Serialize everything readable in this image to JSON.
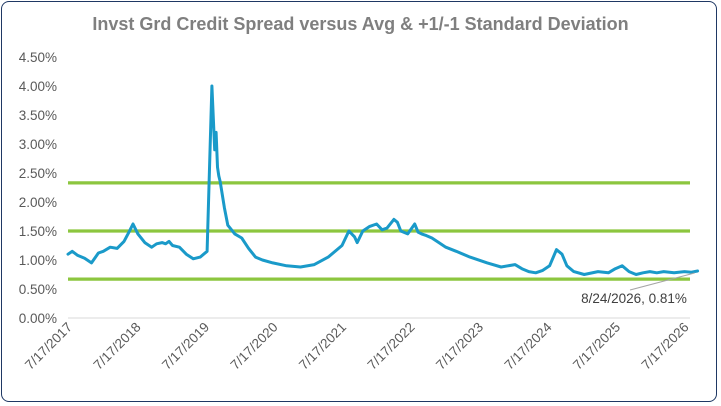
{
  "chart_data": {
    "type": "line",
    "title": "Invst Grd Credit Spread versus Avg & +1/-1 Standard Deviation",
    "xlabel": "",
    "ylabel": "",
    "ylim": [
      0,
      4.5
    ],
    "yticks": [
      "0.00%",
      "0.50%",
      "1.00%",
      "1.50%",
      "2.00%",
      "2.50%",
      "3.00%",
      "3.50%",
      "4.00%",
      "4.50%"
    ],
    "xticks": [
      "7/17/2017",
      "7/17/2018",
      "7/17/2019",
      "7/17/2020",
      "7/17/2021",
      "7/17/2022",
      "7/17/2023",
      "7/17/2024",
      "7/17/2025",
      "7/17/2026"
    ],
    "grid": false,
    "legend": "none",
    "colors": {
      "series": "#1a9ac9",
      "bands": "#8cc63f",
      "frame": "#1f3864"
    },
    "series": [
      {
        "x": [
          2017.54,
          2017.6,
          2017.68,
          2017.78,
          2017.88,
          2017.98,
          2018.05,
          2018.15,
          2018.25,
          2018.35,
          2018.42,
          2018.48,
          2018.55,
          2018.65,
          2018.75,
          2018.82,
          2018.9,
          2018.95,
          2019.0,
          2019.05,
          2019.15,
          2019.25,
          2019.35,
          2019.45,
          2019.55,
          2019.62,
          2019.66,
          2019.68,
          2019.7,
          2019.72,
          2019.74,
          2019.76,
          2019.8,
          2019.85,
          2019.95,
          2020.05,
          2020.15,
          2020.25,
          2020.35,
          2020.5,
          2020.7,
          2020.9,
          2021.1,
          2021.3,
          2021.5,
          2021.6,
          2021.68,
          2021.72,
          2021.8,
          2021.9,
          2022.0,
          2022.08,
          2022.15,
          2022.25,
          2022.3,
          2022.35,
          2022.45,
          2022.55,
          2022.6,
          2022.65,
          2022.72,
          2022.8,
          2022.9,
          2023.0,
          2023.15,
          2023.35,
          2023.6,
          2023.8,
          2024.0,
          2024.1,
          2024.2,
          2024.3,
          2024.4,
          2024.5,
          2024.6,
          2024.68,
          2024.75,
          2024.85,
          2025.0,
          2025.2,
          2025.35,
          2025.45,
          2025.55,
          2025.65,
          2025.75,
          2025.85,
          2025.95,
          2026.05,
          2026.15,
          2026.3,
          2026.45,
          2026.55,
          2026.64
        ],
        "values": [
          1.1,
          1.15,
          1.08,
          1.03,
          0.95,
          1.12,
          1.15,
          1.22,
          1.2,
          1.32,
          1.48,
          1.62,
          1.45,
          1.3,
          1.22,
          1.28,
          1.3,
          1.28,
          1.32,
          1.25,
          1.22,
          1.1,
          1.02,
          1.05,
          1.15,
          4.0,
          2.9,
          3.2,
          2.6,
          2.45,
          2.35,
          2.2,
          1.9,
          1.6,
          1.45,
          1.38,
          1.2,
          1.05,
          1.0,
          0.95,
          0.9,
          0.88,
          0.92,
          1.05,
          1.25,
          1.5,
          1.4,
          1.3,
          1.5,
          1.58,
          1.62,
          1.52,
          1.55,
          1.7,
          1.65,
          1.5,
          1.45,
          1.62,
          1.48,
          1.45,
          1.42,
          1.38,
          1.3,
          1.22,
          1.15,
          1.05,
          0.95,
          0.88,
          0.92,
          0.85,
          0.8,
          0.78,
          0.82,
          0.9,
          1.18,
          1.1,
          0.9,
          0.8,
          0.75,
          0.8,
          0.78,
          0.85,
          0.9,
          0.8,
          0.75,
          0.78,
          0.8,
          0.78,
          0.8,
          0.78,
          0.8,
          0.79,
          0.81
        ]
      }
    ],
    "reference_lines": [
      {
        "label": "+1 Standard Deviation",
        "value": 2.33
      },
      {
        "label": "Avg",
        "value": 1.5
      },
      {
        "label": "-1 Standard Deviation",
        "value": 0.67
      }
    ],
    "annotation": {
      "text": "8/24/2026, 0.81%",
      "x": 2026.64,
      "y": 0.81
    }
  }
}
